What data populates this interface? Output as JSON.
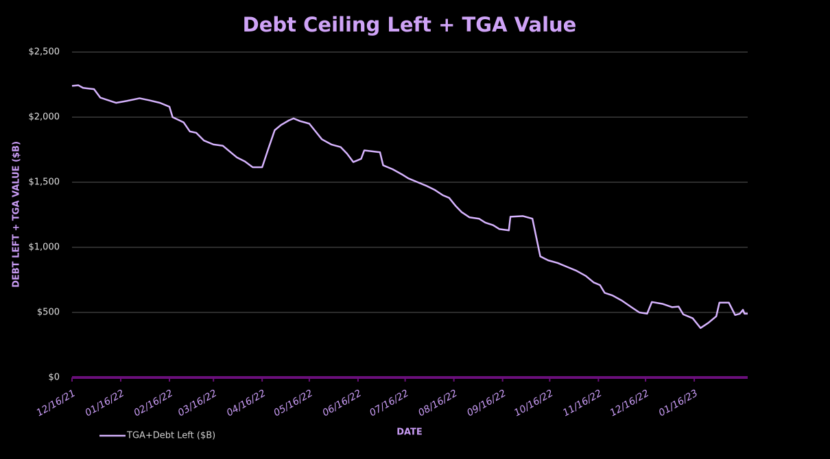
{
  "chart_data": {
    "type": "line",
    "title": "Debt Ceiling Left + TGA Value",
    "x_label": "DATE",
    "y_label": "DEBT LEFT + TGA VALUE ($B)",
    "x": [
      "12/16/21",
      "12/20/21",
      "12/23/21",
      "12/30/21",
      "01/03/22",
      "01/08/22",
      "01/13/22",
      "01/20/22",
      "01/28/22",
      "02/03/22",
      "02/10/22",
      "02/16/22",
      "02/18/22",
      "02/25/22",
      "03/01/22",
      "03/05/22",
      "03/10/22",
      "03/16/22",
      "03/22/22",
      "03/26/22",
      "03/31/22",
      "04/05/22",
      "04/10/22",
      "04/16/22",
      "04/20/22",
      "04/24/22",
      "04/28/22",
      "05/03/22",
      "05/06/22",
      "05/10/22",
      "05/16/22",
      "05/20/22",
      "05/24/22",
      "05/30/22",
      "06/05/22",
      "06/09/22",
      "06/13/22",
      "06/18/22",
      "06/20/22",
      "06/30/22",
      "07/02/22",
      "07/08/22",
      "07/14/22",
      "07/18/22",
      "07/24/22",
      "07/30/22",
      "08/04/22",
      "08/09/22",
      "08/13/22",
      "08/17/22",
      "08/21/22",
      "08/26/22",
      "09/01/22",
      "09/05/22",
      "09/10/22",
      "09/14/22",
      "09/20/22",
      "09/21/22",
      "09/29/22",
      "10/05/22",
      "10/10/22",
      "10/15/22",
      "10/21/22",
      "10/27/22",
      "11/02/22",
      "11/08/22",
      "11/13/22",
      "11/17/22",
      "11/20/22",
      "11/25/22",
      "12/01/22",
      "12/07/22",
      "12/12/22",
      "12/17/22",
      "12/20/22",
      "12/27/22",
      "01/02/23",
      "01/06/23",
      "01/09/23",
      "01/15/23",
      "01/20/23",
      "01/25/23",
      "01/30/23",
      "02/01/23",
      "02/07/23",
      "02/11/23",
      "02/14/23",
      "02/16/23",
      "02/17/23",
      "02/19/23"
    ],
    "series": [
      {
        "name": "TGA+Debt Left ($B)",
        "color": "#d7b4ff",
        "values": [
          2240,
          2245,
          2225,
          2215,
          2150,
          2130,
          2110,
          2125,
          2145,
          2130,
          2110,
          2080,
          2000,
          1960,
          1890,
          1880,
          1820,
          1790,
          1780,
          1740,
          1690,
          1660,
          1615,
          1615,
          1760,
          1900,
          1940,
          1975,
          1990,
          1970,
          1950,
          1890,
          1830,
          1790,
          1770,
          1720,
          1655,
          1680,
          1745,
          1730,
          1630,
          1600,
          1560,
          1530,
          1500,
          1470,
          1440,
          1400,
          1380,
          1320,
          1270,
          1230,
          1220,
          1190,
          1170,
          1140,
          1130,
          1235,
          1240,
          1220,
          930,
          900,
          880,
          850,
          820,
          780,
          730,
          710,
          650,
          630,
          590,
          540,
          500,
          490,
          580,
          565,
          540,
          545,
          485,
          455,
          380,
          420,
          470,
          575,
          575,
          480,
          490,
          520,
          490,
          490
        ]
      }
    ],
    "xlim": [
      "12/16/21",
      "02/19/23"
    ],
    "xticks": [
      "12/16/21",
      "01/16/22",
      "02/16/22",
      "03/16/22",
      "04/16/22",
      "05/16/22",
      "06/16/22",
      "07/16/22",
      "08/16/22",
      "09/16/22",
      "10/16/22",
      "11/16/22",
      "12/16/22",
      "01/16/23"
    ],
    "ylim": [
      0,
      2500
    ],
    "yticks": [
      {
        "value": 0,
        "label": "$0"
      },
      {
        "value": 500,
        "label": "$500"
      },
      {
        "value": 1000,
        "label": "$1,000"
      },
      {
        "value": 1500,
        "label": "$1,500"
      },
      {
        "value": 2000,
        "label": "$2,000"
      },
      {
        "value": 2500,
        "label": "$2,500"
      }
    ],
    "grid": true,
    "legend": "bottom-left"
  }
}
